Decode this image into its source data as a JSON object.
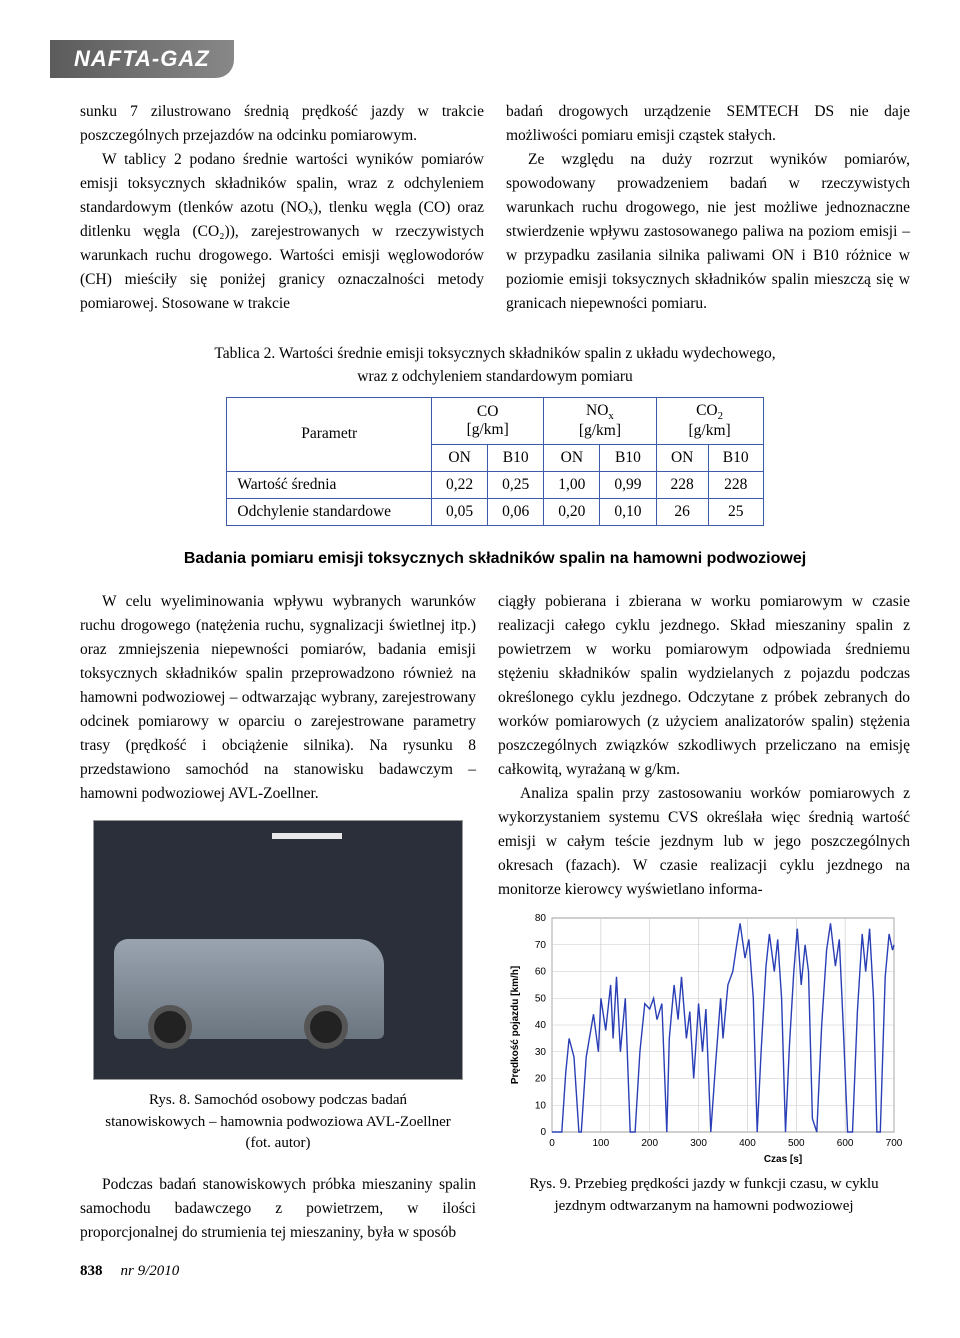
{
  "banner": "NAFTA-GAZ",
  "top_paragraphs": {
    "left": [
      "sunku 7 zilustrowano średnią prędkość jazdy w trakcie poszczególnych przejazdów na odcinku pomiarowym.",
      "W tablicy 2 podano średnie wartości wyników pomiarów emisji toksycznych składników spalin, wraz z odchyleniem standardowym (tlenków azotu (NOₓ), tlenku węgla (CO) oraz ditlenku węgla (CO₂)), zarejestrowanych w rzeczywistych warunkach ruchu drogowego. Wartości emisji węglowodorów (CH) mieściły się poniżej granicy oznaczalności metody pomiarowej. Stosowane w trakcie"
    ],
    "right": [
      "badań drogowych urządzenie SEMTECH DS nie daje możliwości pomiaru emisji cząstek stałych.",
      "Ze względu na duży rozrzut wyników pomiarów, spowodowany prowadzeniem badań w rzeczywistych warunkach ruchu drogowego, nie jest możliwe jednoznaczne stwierdzenie wpływu zastosowanego paliwa na poziom emisji – w przypadku zasilania silnika paliwami ON i B10 różnice w poziomie emisji toksycznych składników spalin mieszczą się w granicach niepewności pomiaru."
    ]
  },
  "table_caption_l1": "Tablica 2. Wartości średnie emisji toksycznych składników spalin z układu wydechowego,",
  "table_caption_l2": "wraz z odchyleniem standardowym pomiaru",
  "table": {
    "param_header": "Parametr",
    "groups": [
      {
        "label": "CO",
        "sub": "",
        "unit": "[g/km]"
      },
      {
        "label": "NO",
        "sub": "x",
        "unit": "[g/km]"
      },
      {
        "label": "CO",
        "sub": "2",
        "unit": "[g/km]"
      }
    ],
    "sub_headers": [
      "ON",
      "B10",
      "ON",
      "B10",
      "ON",
      "B10"
    ],
    "rows": [
      {
        "name": "Wartość średnia",
        "cells": [
          "0,22",
          "0,25",
          "1,00",
          "0,99",
          "228",
          "228"
        ]
      },
      {
        "name": "Odchylenie standardowe",
        "cells": [
          "0,05",
          "0,06",
          "0,20",
          "0,10",
          "26",
          "25"
        ]
      }
    ]
  },
  "section_title": "Badania pomiaru emisji toksycznych składników spalin na hamowni podwoziowej",
  "bottom_paragraphs": {
    "left": [
      "W celu wyeliminowania wpływu wybranych warunków ruchu drogowego (natężenia ruchu, sygnalizacji świetlnej itp.) oraz zmniejszenia niepewności pomiarów, badania emisji toksycznych składników spalin przeprowadzono również na hamowni podwoziowej – odtwarzając wybrany, zarejestrowany odcinek pomiarowy w oparciu o zarejestrowane parametry trasy (prędkość i obciążenie silnika). Na rysunku 8 przedstawiono samochód na stanowisku badawczym – hamowni podwoziowej AVL-Zoellner."
    ],
    "right": [
      "ciągły pobierana i zbierana w worku pomiarowym w czasie realizacji całego cyklu jezdnego. Skład mieszaniny spalin z powietrzem w worku pomiarowym odpowiada średniemu stężeniu składników spalin wydzielanych z pojazdu podczas określonego cyklu jezdnego. Odczytane z próbek zebranych do worków pomiarowych (z użyciem analizatorów spalin) stężenia poszczególnych związków szkodliwych przeliczano na emisję całkowitą, wyrażaną w g/km.",
      "Analiza spalin przy zastosowaniu worków pomiarowych z wykorzystaniem systemu CVS określała więc średnią wartość emisji w całym teście jezdnym lub w jego poszczególnych okresach (fazach). W czasie realizacji cyklu jezdnego na monitorze kierowcy wyświetlano informa-"
    ],
    "left_after": [
      "Podczas badań stanowiskowych próbka mieszaniny spalin samochodu badawczego z powietrzem, w ilości proporcjonalnej do strumienia tej mieszaniny, była w sposób"
    ]
  },
  "fig8_caption": "Rys. 8. Samochód osobowy podczas badań stanowiskowych – hamownia podwoziowa AVL-Zoellner (fot. autor)",
  "fig9_caption": "Rys. 9. Przebieg prędkości jazdy w funkcji czasu, w cyklu jezdnym odtwarzanym na hamowni podwoziowej",
  "chart": {
    "type": "line",
    "xlabel": "Czas [s]",
    "ylabel": "Prędkość pojazdu [km/h]",
    "xlim": [
      0,
      700
    ],
    "ylim": [
      0,
      80
    ],
    "xticks": [
      0,
      100,
      200,
      300,
      400,
      500,
      600,
      700
    ],
    "yticks": [
      0,
      10,
      20,
      30,
      40,
      50,
      60,
      70,
      80
    ],
    "line_color": "#2a3fb5",
    "grid_color": "#c8c8c8",
    "axis_color": "#555555",
    "line_width": 1.4,
    "background": "#ffffff",
    "series": [
      [
        0,
        0
      ],
      [
        10,
        0
      ],
      [
        20,
        0
      ],
      [
        28,
        22
      ],
      [
        35,
        35
      ],
      [
        45,
        28
      ],
      [
        55,
        0
      ],
      [
        60,
        0
      ],
      [
        70,
        28
      ],
      [
        85,
        44
      ],
      [
        95,
        30
      ],
      [
        100,
        50
      ],
      [
        110,
        38
      ],
      [
        120,
        55
      ],
      [
        125,
        35
      ],
      [
        132,
        58
      ],
      [
        140,
        30
      ],
      [
        150,
        50
      ],
      [
        160,
        0
      ],
      [
        170,
        0
      ],
      [
        180,
        30
      ],
      [
        190,
        48
      ],
      [
        200,
        46
      ],
      [
        208,
        50
      ],
      [
        215,
        42
      ],
      [
        225,
        48
      ],
      [
        235,
        0
      ],
      [
        240,
        35
      ],
      [
        250,
        55
      ],
      [
        258,
        42
      ],
      [
        265,
        58
      ],
      [
        275,
        35
      ],
      [
        282,
        45
      ],
      [
        290,
        20
      ],
      [
        300,
        48
      ],
      [
        308,
        30
      ],
      [
        315,
        46
      ],
      [
        325,
        0
      ],
      [
        335,
        26
      ],
      [
        345,
        50
      ],
      [
        350,
        35
      ],
      [
        360,
        55
      ],
      [
        370,
        60
      ],
      [
        378,
        70
      ],
      [
        385,
        78
      ],
      [
        395,
        65
      ],
      [
        403,
        72
      ],
      [
        412,
        50
      ],
      [
        420,
        0
      ],
      [
        428,
        30
      ],
      [
        438,
        62
      ],
      [
        445,
        74
      ],
      [
        455,
        60
      ],
      [
        462,
        72
      ],
      [
        470,
        50
      ],
      [
        478,
        0
      ],
      [
        486,
        32
      ],
      [
        495,
        60
      ],
      [
        502,
        76
      ],
      [
        510,
        55
      ],
      [
        518,
        70
      ],
      [
        525,
        60
      ],
      [
        533,
        5
      ],
      [
        542,
        0
      ],
      [
        552,
        40
      ],
      [
        562,
        68
      ],
      [
        570,
        78
      ],
      [
        580,
        62
      ],
      [
        588,
        72
      ],
      [
        596,
        40
      ],
      [
        605,
        0
      ],
      [
        615,
        0
      ],
      [
        625,
        45
      ],
      [
        635,
        74
      ],
      [
        642,
        60
      ],
      [
        650,
        76
      ],
      [
        658,
        50
      ],
      [
        665,
        0
      ],
      [
        672,
        0
      ],
      [
        682,
        58
      ],
      [
        690,
        74
      ],
      [
        697,
        68
      ],
      [
        700,
        70
      ]
    ]
  },
  "footer": {
    "page_number": "838",
    "issue": "nr 9/2010"
  }
}
